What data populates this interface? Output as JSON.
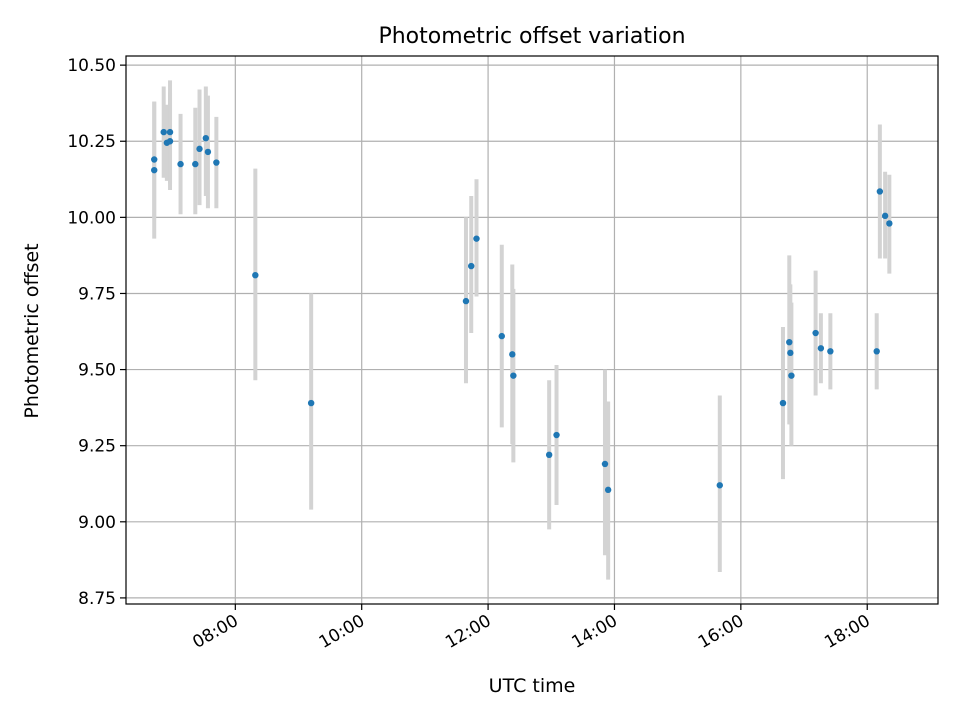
{
  "chart_data": {
    "type": "scatter",
    "title": "Photometric offset variation",
    "xlabel": "UTC time",
    "ylabel": "Photometric offset",
    "x_tick_labels": [
      "08:00",
      "10:00",
      "12:00",
      "14:00",
      "16:00",
      "18:00"
    ],
    "x_ticks_hours": [
      8,
      10,
      12,
      14,
      16,
      18
    ],
    "xlim_hours": [
      6.27,
      19.12
    ],
    "y_ticks": [
      8.75,
      9.0,
      9.25,
      9.5,
      9.75,
      10.0,
      10.25,
      10.5
    ],
    "y_tick_labels": [
      "8.75",
      "9.00",
      "9.25",
      "9.50",
      "9.75",
      "10.00",
      "10.25",
      "10.50"
    ],
    "ylim": [
      8.73,
      10.53
    ],
    "grid": true,
    "colors": {
      "points": "#1f77b4",
      "error_bars": "#d3d3d3",
      "grid": "#b0b0b0"
    },
    "points": [
      {
        "t": "06:43",
        "y": 10.19,
        "lo": 10.0,
        "hi": 10.38
      },
      {
        "t": "06:43",
        "y": 10.155,
        "lo": 9.93,
        "hi": 10.38
      },
      {
        "t": "06:52",
        "y": 10.28,
        "lo": 10.13,
        "hi": 10.43
      },
      {
        "t": "06:55",
        "y": 10.245,
        "lo": 10.12,
        "hi": 10.37
      },
      {
        "t": "06:58",
        "y": 10.28,
        "lo": 10.11,
        "hi": 10.45
      },
      {
        "t": "06:58",
        "y": 10.25,
        "lo": 10.09,
        "hi": 10.41
      },
      {
        "t": "07:08",
        "y": 10.175,
        "lo": 10.01,
        "hi": 10.34
      },
      {
        "t": "07:22",
        "y": 10.175,
        "lo": 10.01,
        "hi": 10.36
      },
      {
        "t": "07:26",
        "y": 10.225,
        "lo": 10.04,
        "hi": 10.42
      },
      {
        "t": "07:32",
        "y": 10.26,
        "lo": 10.07,
        "hi": 10.43
      },
      {
        "t": "07:34",
        "y": 10.215,
        "lo": 10.03,
        "hi": 10.4
      },
      {
        "t": "07:42",
        "y": 10.18,
        "lo": 10.03,
        "hi": 10.33
      },
      {
        "t": "08:19",
        "y": 9.81,
        "lo": 9.465,
        "hi": 10.16
      },
      {
        "t": "09:12",
        "y": 9.39,
        "lo": 9.04,
        "hi": 9.75
      },
      {
        "t": "11:39",
        "y": 9.725,
        "lo": 9.455,
        "hi": 10.0
      },
      {
        "t": "11:44",
        "y": 9.84,
        "lo": 9.62,
        "hi": 10.07
      },
      {
        "t": "11:49",
        "y": 9.93,
        "lo": 9.74,
        "hi": 10.125
      },
      {
        "t": "12:13",
        "y": 9.61,
        "lo": 9.31,
        "hi": 9.91
      },
      {
        "t": "12:23",
        "y": 9.55,
        "lo": 9.255,
        "hi": 9.845
      },
      {
        "t": "12:24",
        "y": 9.48,
        "lo": 9.195,
        "hi": 9.765
      },
      {
        "t": "12:58",
        "y": 9.22,
        "lo": 8.975,
        "hi": 9.465
      },
      {
        "t": "13:05",
        "y": 9.285,
        "lo": 9.055,
        "hi": 9.515
      },
      {
        "t": "13:51",
        "y": 9.19,
        "lo": 8.89,
        "hi": 9.5
      },
      {
        "t": "13:54",
        "y": 9.105,
        "lo": 8.81,
        "hi": 9.395
      },
      {
        "t": "15:40",
        "y": 9.12,
        "lo": 8.835,
        "hi": 9.415
      },
      {
        "t": "16:40",
        "y": 9.39,
        "lo": 9.14,
        "hi": 9.64
      },
      {
        "t": "16:46",
        "y": 9.59,
        "lo": 9.32,
        "hi": 9.875
      },
      {
        "t": "16:47",
        "y": 9.555,
        "lo": 9.32,
        "hi": 9.78
      },
      {
        "t": "16:48",
        "y": 9.48,
        "lo": 9.25,
        "hi": 9.72
      },
      {
        "t": "17:11",
        "y": 9.62,
        "lo": 9.415,
        "hi": 9.825
      },
      {
        "t": "17:16",
        "y": 9.57,
        "lo": 9.455,
        "hi": 9.685
      },
      {
        "t": "17:25",
        "y": 9.56,
        "lo": 9.435,
        "hi": 9.685
      },
      {
        "t": "18:09",
        "y": 9.56,
        "lo": 9.435,
        "hi": 9.685
      },
      {
        "t": "18:12",
        "y": 10.085,
        "lo": 9.865,
        "hi": 10.305
      },
      {
        "t": "18:17",
        "y": 10.005,
        "lo": 9.865,
        "hi": 10.15
      },
      {
        "t": "18:21",
        "y": 9.98,
        "lo": 9.815,
        "hi": 10.14
      }
    ]
  }
}
